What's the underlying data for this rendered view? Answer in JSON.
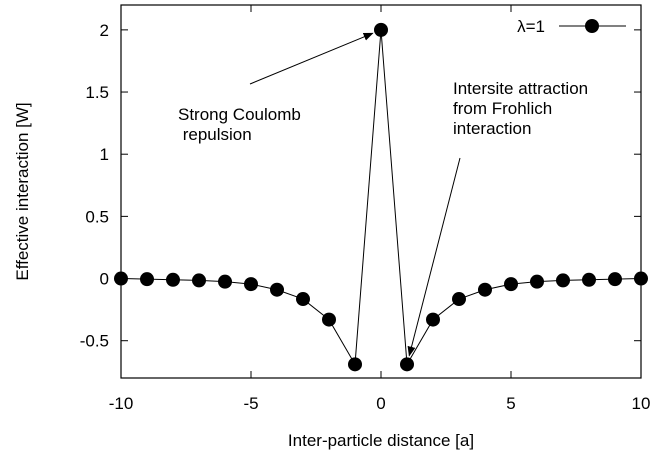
{
  "chart_data": {
    "type": "line",
    "xlabel": "Inter-particle distance [a]",
    "ylabel": "Effective interaction [W]",
    "xlim": [
      -10,
      10
    ],
    "ylim": [
      -0.8,
      2.2
    ],
    "x_ticks": [
      -10,
      -5,
      0,
      5,
      10
    ],
    "y_ticks": [
      -0.5,
      0,
      0.5,
      1,
      1.5,
      2
    ],
    "x_tick_labels": [
      "-10",
      "-5",
      "0",
      "5",
      "10"
    ],
    "y_tick_labels": [
      "-0.5",
      "0",
      "0.5",
      "1",
      "1.5",
      "2"
    ],
    "grid": false,
    "legend_position": "top-right",
    "series": [
      {
        "name": "λ=1",
        "marker": "filled-circle",
        "color": "#000000",
        "x": [
          -10,
          -9,
          -8,
          -7,
          -6,
          -5,
          -4,
          -3,
          -2,
          -1,
          0,
          1,
          2,
          3,
          4,
          5,
          6,
          7,
          8,
          9,
          10
        ],
        "y": [
          0.0,
          -0.005,
          -0.01,
          -0.015,
          -0.025,
          -0.045,
          -0.09,
          -0.165,
          -0.33,
          -0.69,
          2.0,
          -0.69,
          -0.33,
          -0.165,
          -0.09,
          -0.045,
          -0.025,
          -0.015,
          -0.01,
          -0.005,
          0.0
        ]
      }
    ],
    "annotations": [
      {
        "lines": [
          "Strong Coulomb",
          " repulsion"
        ],
        "arrow_to": {
          "x": 0,
          "y": 2.0
        }
      },
      {
        "lines": [
          "Intersite attraction",
          "from Frohlich",
          "interaction"
        ],
        "arrow_to": {
          "x": 1,
          "y": -0.69
        }
      }
    ]
  }
}
